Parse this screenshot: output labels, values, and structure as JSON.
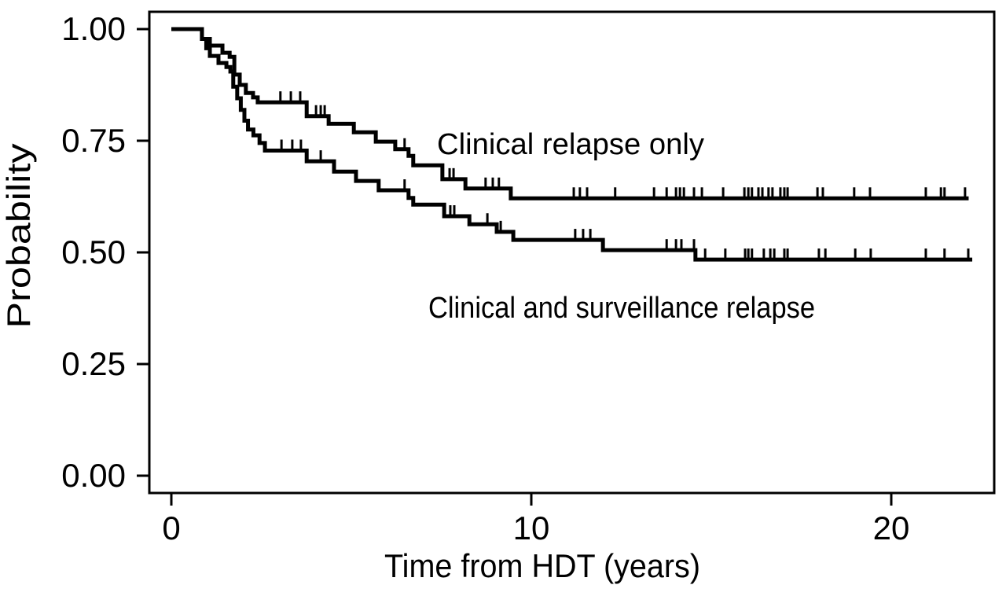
{
  "figure": {
    "background_color": "#ffffff",
    "foreground_color": "#000000"
  },
  "chart_data": {
    "type": "line",
    "style": "kaplan-meier-step-curve",
    "title": "",
    "xlabel": "Time from HDT (years)",
    "ylabel": "Probability",
    "xlim": [
      -0.6,
      22.9
    ],
    "ylim": [
      -0.04,
      1.04
    ],
    "xticks": {
      "values": [
        0,
        10,
        20
      ],
      "labels": [
        "0",
        "10",
        "20"
      ]
    },
    "yticks": {
      "values": [
        0,
        0.25,
        0.5,
        0.75,
        1.0
      ],
      "labels": [
        "0.00",
        "0.25",
        "0.50",
        "0.75",
        "1.00"
      ]
    },
    "grid": false,
    "legend_position": "inline-annotations",
    "line_color": "#000000",
    "series": [
      {
        "name": "Clinical relapse only",
        "slug": "clinical-relapse-only",
        "steps": [
          [
            0,
            1.0
          ],
          [
            0.85,
            0.978
          ],
          [
            1.07,
            0.963
          ],
          [
            1.42,
            0.947
          ],
          [
            1.62,
            0.938
          ],
          [
            1.75,
            0.898
          ],
          [
            1.9,
            0.875
          ],
          [
            2.07,
            0.857
          ],
          [
            2.27,
            0.847
          ],
          [
            2.4,
            0.836
          ],
          [
            3.76,
            0.805
          ],
          [
            4.37,
            0.788
          ],
          [
            5.07,
            0.769
          ],
          [
            5.68,
            0.748
          ],
          [
            6.22,
            0.731
          ],
          [
            6.59,
            0.716
          ],
          [
            6.72,
            0.695
          ],
          [
            7.53,
            0.664
          ],
          [
            8.17,
            0.643
          ],
          [
            9.43,
            0.621
          ]
        ],
        "end_time": 22.15,
        "final_probability": 0.621,
        "censor_times": [
          3.03,
          3.32,
          3.58,
          4.02,
          4.15,
          4.26,
          6.48,
          7.73,
          7.84,
          8.73,
          8.93,
          9.1,
          11.18,
          11.35,
          11.55,
          12.33,
          13.41,
          13.76,
          14.02,
          14.13,
          14.24,
          14.52,
          14.74,
          15.33,
          15.92,
          16.03,
          16.13,
          16.31,
          16.42,
          16.59,
          16.7,
          16.92,
          17.03,
          17.12,
          17.95,
          18.1,
          18.97,
          19.41,
          20.96,
          21.38,
          21.48,
          22.05
        ]
      },
      {
        "name": "Clinical and surveillance relapse",
        "slug": "clinical-and-surveillance-relapse",
        "steps": [
          [
            0,
            1.0
          ],
          [
            0.85,
            0.978
          ],
          [
            0.97,
            0.957
          ],
          [
            1.07,
            0.94
          ],
          [
            1.31,
            0.924
          ],
          [
            1.53,
            0.915
          ],
          [
            1.64,
            0.905
          ],
          [
            1.72,
            0.871
          ],
          [
            1.83,
            0.845
          ],
          [
            1.93,
            0.819
          ],
          [
            2.03,
            0.795
          ],
          [
            2.13,
            0.775
          ],
          [
            2.28,
            0.762
          ],
          [
            2.45,
            0.745
          ],
          [
            2.6,
            0.728
          ],
          [
            3.76,
            0.704
          ],
          [
            4.52,
            0.681
          ],
          [
            5.13,
            0.66
          ],
          [
            5.76,
            0.639
          ],
          [
            6.59,
            0.622
          ],
          [
            6.72,
            0.607
          ],
          [
            7.58,
            0.581
          ],
          [
            8.28,
            0.563
          ],
          [
            9.04,
            0.546
          ],
          [
            9.5,
            0.528
          ],
          [
            11.99,
            0.505
          ],
          [
            14.56,
            0.484
          ]
        ],
        "end_time": 22.25,
        "final_probability": 0.484,
        "censor_times": [
          3.06,
          3.36,
          3.6,
          4.15,
          6.48,
          7.75,
          7.86,
          8.78,
          9.15,
          11.22,
          11.44,
          11.64,
          13.76,
          14.02,
          14.17,
          14.52,
          14.83,
          15.39,
          15.94,
          16.03,
          16.13,
          16.46,
          16.64,
          16.75,
          17.03,
          17.12,
          17.99,
          18.17,
          19.0,
          19.43,
          20.96,
          21.48,
          22.14
        ]
      }
    ]
  }
}
